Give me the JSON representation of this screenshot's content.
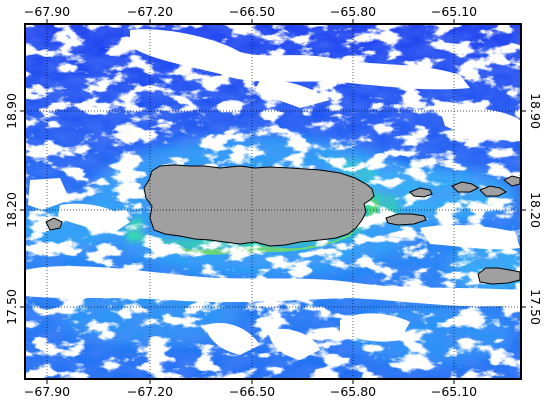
{
  "map": {
    "top_axis_labels": [
      "−67.90",
      "−67.20",
      "−66.50",
      "−65.80",
      "−65.10"
    ],
    "bottom_axis_labels": [
      "−67.90",
      "−67.20",
      "−66.50",
      "−65.80",
      "−65.10"
    ],
    "left_axis_labels": [
      "18.90",
      "18.20",
      "17.50"
    ],
    "right_axis_labels": [
      "18.90",
      "18.20",
      "17.50"
    ],
    "longitude_ticks": [
      -67.9,
      -67.2,
      -66.5,
      -65.8,
      -65.1
    ],
    "latitude_ticks": [
      18.9,
      18.2,
      17.5
    ],
    "grid": "dotted",
    "colors": {
      "deep_water": "#1a3cf0",
      "mid_water": "#1f78f5",
      "coastal_water": "#21c4f6",
      "shelf_high": "#18f08c",
      "near_shore_peak": "#6cf04a",
      "no_data_cloud": "#ffffff",
      "land": "#a0a0a0",
      "coastline": "#000000",
      "frame": "#000000"
    }
  }
}
